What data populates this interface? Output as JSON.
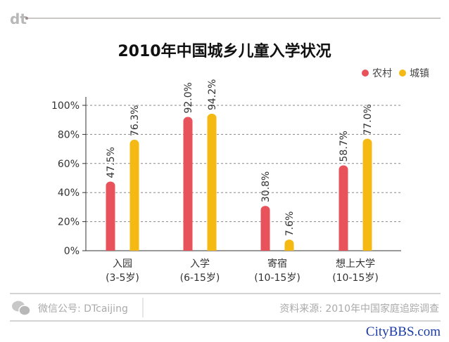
{
  "brand": {
    "logo": "dt"
  },
  "chart_data": {
    "type": "bar",
    "title": "2010年中国城乡儿童入学状况",
    "categories": [
      {
        "label": "入园",
        "sub": "(3-5岁)"
      },
      {
        "label": "入学",
        "sub": "(6-15岁)"
      },
      {
        "label": "寄宿",
        "sub": "(10-15岁)"
      },
      {
        "label": "想上大学",
        "sub": "(10-15岁)"
      }
    ],
    "series": [
      {
        "name": "农村",
        "color": "#e8525a",
        "values": [
          47.5,
          92.0,
          30.8,
          58.7
        ],
        "labels": [
          "47.5%",
          "92.0%",
          "30.8%",
          "58.7%"
        ]
      },
      {
        "name": "城镇",
        "color": "#f5b914",
        "values": [
          76.3,
          94.2,
          7.6,
          77.0
        ],
        "labels": [
          "76.3%",
          "94.2%",
          "7.6%",
          "77.0%"
        ]
      }
    ],
    "ylim": [
      0,
      100
    ],
    "yticks": [
      "0%",
      "20%",
      "40%",
      "60%",
      "80%",
      "100%"
    ],
    "grid": true,
    "legend": "top-right"
  },
  "footer": {
    "wechat": "微信公号: DTcaijing",
    "source": "资料来源: 2010年中国家庭追踪调查"
  },
  "watermark": "CityBBS.com"
}
